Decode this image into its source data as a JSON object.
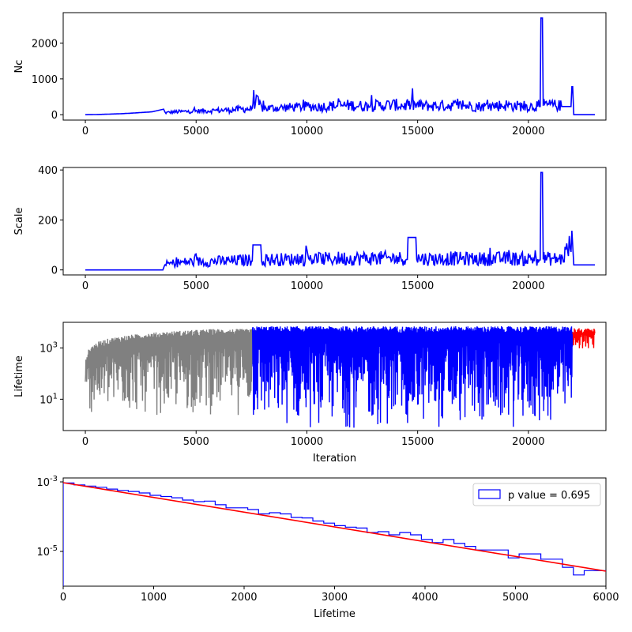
{
  "chart_data": [
    {
      "type": "line",
      "ylabel": "Nc",
      "xlim": [
        -1000,
        23500
      ],
      "ylim": [
        -150,
        2850
      ],
      "x_ticks": [
        "0",
        "5000",
        "10000",
        "15000",
        "20000"
      ],
      "y_ticks": [
        "0",
        "1000",
        "2000"
      ],
      "colors": {
        "line": "#0000ff"
      },
      "series": [
        {
          "x": [
            0,
            500,
            1000,
            1500,
            2000,
            2500,
            3000,
            3500,
            3600,
            4000,
            4500,
            5000,
            5500,
            6000,
            6500,
            7000,
            7500,
            7600,
            8000,
            8500,
            9000,
            9500,
            10000,
            10500,
            11000,
            11500,
            12000,
            12500,
            13000,
            13500,
            14000,
            14500,
            15000,
            15500,
            16000,
            16500,
            17000,
            17500,
            18000,
            18500,
            19000,
            19500,
            20000,
            20500,
            20600,
            20700,
            21000,
            21500,
            22000,
            22050,
            23000
          ],
          "y": [
            0,
            5,
            15,
            25,
            40,
            60,
            80,
            150,
            50,
            70,
            80,
            90,
            100,
            110,
            120,
            140,
            150,
            400,
            160,
            170,
            180,
            190,
            210,
            200,
            220,
            230,
            240,
            220,
            230,
            240,
            250,
            230,
            240,
            220,
            230,
            240,
            230,
            220,
            210,
            230,
            240,
            220,
            210,
            230,
            2700,
            250,
            240,
            230,
            780,
            0,
            0
          ]
        }
      ]
    },
    {
      "type": "line",
      "ylabel": "Scale",
      "xlim": [
        -1000,
        23500
      ],
      "ylim": [
        -20,
        410
      ],
      "x_ticks": [
        "0",
        "5000",
        "10000",
        "15000",
        "20000"
      ],
      "y_ticks": [
        "0",
        "200",
        "400"
      ],
      "colors": {
        "line": "#0000ff"
      },
      "series": [
        {
          "x": [
            0,
            3500,
            3600,
            4000,
            4500,
            5000,
            5500,
            6000,
            6500,
            7000,
            7500,
            7600,
            8000,
            8500,
            9000,
            9500,
            10000,
            10500,
            11000,
            11500,
            12000,
            12500,
            13000,
            13500,
            14000,
            14500,
            14600,
            15000,
            15500,
            16000,
            16500,
            17000,
            17500,
            18000,
            18500,
            19000,
            19500,
            20000,
            20500,
            20600,
            20700,
            21000,
            21500,
            22000,
            22050,
            23000
          ],
          "y": [
            0,
            0,
            20,
            25,
            28,
            30,
            30,
            32,
            32,
            35,
            35,
            100,
            35,
            38,
            38,
            38,
            40,
            40,
            40,
            42,
            42,
            42,
            42,
            42,
            42,
            42,
            130,
            42,
            40,
            40,
            42,
            40,
            40,
            40,
            40,
            42,
            40,
            40,
            40,
            390,
            42,
            40,
            40,
            100,
            20,
            20
          ]
        }
      ]
    },
    {
      "type": "line",
      "xlabel": "Iteration",
      "ylabel": "Lifetime",
      "yscale": "log",
      "xlim": [
        -1000,
        23500
      ],
      "ylim": [
        0.6,
        10000
      ],
      "x_ticks": [
        "0",
        "5000",
        "10000",
        "15000",
        "20000"
      ],
      "y_ticks": [
        {
          "base": "10",
          "exp": "1",
          "value": 10
        },
        {
          "base": "10",
          "exp": "3",
          "value": 1000
        }
      ],
      "colors": {
        "warmup": "#808080",
        "main": "#0000ff",
        "tail": "#ff0000"
      },
      "series": [
        {
          "x_range": [
            0,
            7550
          ],
          "y_upper": [
            1,
            2000,
            3500,
            4500,
            5500
          ],
          "y_lower_min": 2,
          "style": "envelope"
        },
        {
          "x_range": [
            7550,
            22000
          ],
          "y_upper": [
            7000
          ],
          "y_lower_min": 0.6,
          "style": "envelope"
        },
        {
          "x_range": [
            22000,
            23000
          ],
          "y_upper": [
            6000
          ],
          "y_lower_min": 50,
          "style": "envelope"
        }
      ]
    },
    {
      "type": "line",
      "xlabel": "Lifetime",
      "yscale": "log",
      "xlim": [
        0,
        6000
      ],
      "ylim": [
        1e-06,
        0.0013
      ],
      "x_ticks": [
        "0",
        "1000",
        "2000",
        "3000",
        "4000",
        "5000",
        "6000"
      ],
      "y_ticks": [
        {
          "base": "10",
          "exp": "-5",
          "value": 1e-05
        },
        {
          "base": "10",
          "exp": "-3",
          "value": 0.001
        }
      ],
      "legend": {
        "label": "p value = 0.695",
        "placement": "upper right"
      },
      "colors": {
        "hist": "#0000ff",
        "fit": "#ff0000"
      },
      "series": [
        {
          "style": "step",
          "x": [
            0,
            120,
            240,
            360,
            480,
            600,
            720,
            840,
            960,
            1080,
            1200,
            1320,
            1440,
            1560,
            1680,
            1800,
            1920,
            2040,
            2160,
            2280,
            2400,
            2520,
            2640,
            2760,
            2880,
            3000,
            3120,
            3240,
            3360,
            3480,
            3600,
            3720,
            3840,
            3960,
            4080,
            4200,
            4320,
            4440,
            4560,
            4680,
            4800,
            4920,
            5040,
            5160,
            5280,
            5400,
            5520,
            5640,
            5760,
            5880
          ],
          "y": [
            0.00093,
            0.00082,
            0.00076,
            0.0007,
            0.00062,
            0.00057,
            0.00053,
            0.00048,
            0.00041,
            0.00038,
            0.00035,
            0.0003,
            0.00027,
            0.00028,
            0.00022,
            0.00018,
            0.00018,
            0.00016,
            0.00012,
            0.00013,
            0.00012,
            9.5e-05,
            9.2e-05,
            7.5e-05,
            6.5e-05,
            5.5e-05,
            5e-05,
            4.7e-05,
            3.5e-05,
            3.7e-05,
            3e-05,
            3.5e-05,
            3e-05,
            2.2e-05,
            1.8e-05,
            2.2e-05,
            1.7e-05,
            1.4e-05,
            1.1e-05,
            1.1e-05,
            1.1e-05,
            6.5e-06,
            8.5e-06,
            8.5e-06,
            6e-06,
            6e-06,
            3.5e-06,
            2.1e-06,
            2.8e-06,
            2.8e-06
          ]
        },
        {
          "style": "line",
          "x": [
            0,
            6000
          ],
          "y": [
            0.00095,
            2.7e-06
          ]
        }
      ]
    }
  ]
}
